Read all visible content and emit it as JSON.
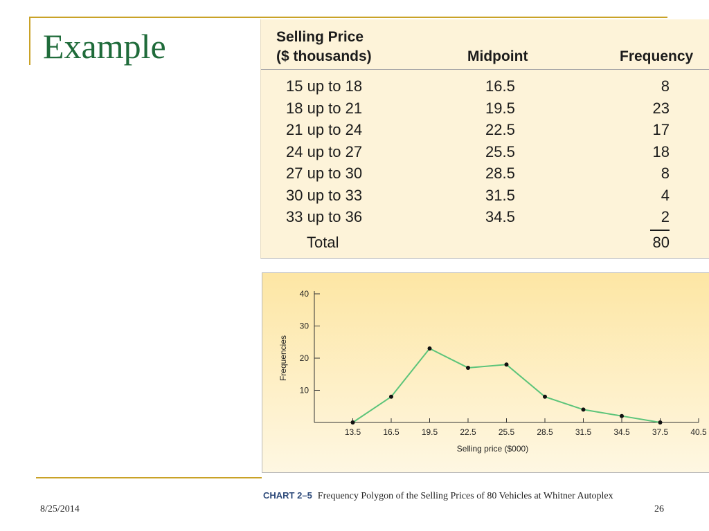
{
  "slide": {
    "title": "Example",
    "date": "8/25/2014",
    "page_number": "26",
    "accent_color": "#c9a227",
    "title_color": "#1f6b3a"
  },
  "table": {
    "header_price_line1": "Selling Price",
    "header_price_line2": "($ thousands)",
    "header_midpoint": "Midpoint",
    "header_frequency": "Frequency",
    "rows": [
      {
        "class": "15 up to 18",
        "midpoint": "16.5",
        "frequency": "8"
      },
      {
        "class": "18 up to 21",
        "midpoint": "19.5",
        "frequency": "23"
      },
      {
        "class": "21 up to 24",
        "midpoint": "22.5",
        "frequency": "17"
      },
      {
        "class": "24 up to 27",
        "midpoint": "25.5",
        "frequency": "18"
      },
      {
        "class": "27 up to 30",
        "midpoint": "28.5",
        "frequency": "8"
      },
      {
        "class": "30 up to 33",
        "midpoint": "31.5",
        "frequency": "4"
      },
      {
        "class": "33 up to 36",
        "midpoint": "34.5",
        "frequency": "2"
      }
    ],
    "total_label": "Total",
    "total_value": "80"
  },
  "caption": {
    "number": "CHART 2–5",
    "text": "Frequency Polygon of the Selling Prices of 80 Vehicles at Whitner Autoplex"
  },
  "chart_data": {
    "type": "line",
    "xlabel": "Selling price ($000)",
    "ylabel": "Frequencies",
    "x_ticks": [
      13.5,
      16.5,
      19.5,
      22.5,
      25.5,
      28.5,
      31.5,
      34.5,
      37.5,
      40.5
    ],
    "y_ticks": [
      10,
      20,
      30,
      40
    ],
    "xlim": [
      10.5,
      40.5
    ],
    "ylim": [
      0,
      40
    ],
    "grid": false,
    "line_color": "#5cc47a",
    "point_color": "#111111",
    "series": [
      {
        "x": [
          13.5,
          16.5,
          19.5,
          22.5,
          25.5,
          28.5,
          31.5,
          34.5,
          37.5
        ],
        "y": [
          0,
          8,
          23,
          17,
          18,
          8,
          4,
          2,
          0
        ]
      }
    ]
  }
}
